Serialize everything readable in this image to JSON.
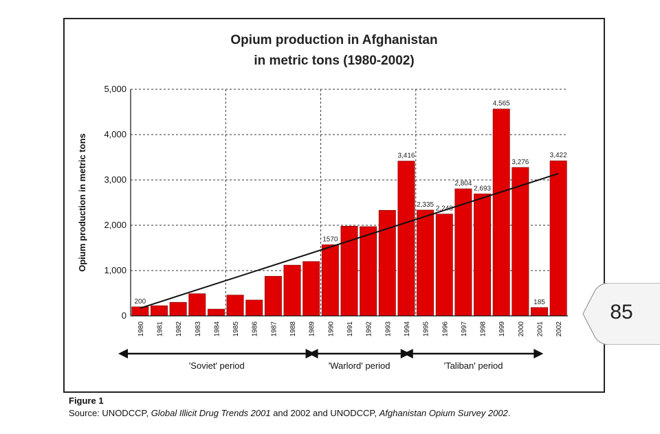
{
  "chart_data": {
    "type": "bar",
    "title": "Opium production in Afghanistan",
    "subtitle": "in metric tons (1980-2002)",
    "ylabel": "Opium production in metric tons",
    "xlabel": "",
    "ylim": [
      0,
      5000
    ],
    "yticks": [
      "0",
      "1,000",
      "2,000",
      "3,000",
      "4,000",
      "5,000"
    ],
    "ytick_values": [
      0,
      1000,
      2000,
      3000,
      4000,
      5000
    ],
    "grid": true,
    "bar_color": "#e00000",
    "categories": [
      "1980",
      "1981",
      "1982",
      "1983",
      "1984",
      "1985",
      "1986",
      "1987",
      "1988",
      "1989",
      "1990",
      "1991",
      "1992",
      "1993",
      "1994",
      "1995",
      "1996",
      "1997",
      "1998",
      "1999",
      "2000",
      "2001",
      "2002"
    ],
    "values": [
      200,
      225,
      300,
      490,
      150,
      460,
      350,
      875,
      1120,
      1200,
      1570,
      1980,
      1970,
      2330,
      3416,
      2335,
      2248,
      2804,
      2693,
      4565,
      3276,
      185,
      3422
    ],
    "data_labels": [
      {
        "index": 0,
        "text": "200"
      },
      {
        "index": 10,
        "text": "1570"
      },
      {
        "index": 14,
        "text": "3,416"
      },
      {
        "index": 15,
        "text": "2,335"
      },
      {
        "index": 16,
        "text": "2,248"
      },
      {
        "index": 17,
        "text": "2,804"
      },
      {
        "index": 18,
        "text": "2,693"
      },
      {
        "index": 19,
        "text": "4,565"
      },
      {
        "index": 20,
        "text": "3,276"
      },
      {
        "index": 21,
        "text": "185"
      },
      {
        "index": 22,
        "text": "3,422"
      }
    ],
    "trendline": {
      "from": {
        "x": "1980",
        "y": 170
      },
      "to": {
        "x": "2002",
        "y": 3140
      }
    },
    "period_dividers_after": [
      "1984",
      "1989",
      "1994"
    ],
    "periods": [
      {
        "label": "'Soviet' period",
        "start": "1980",
        "end": "1989"
      },
      {
        "label": "'Warlord' period",
        "start": "1990",
        "end": "1994"
      },
      {
        "label": "'Taliban' period",
        "start": "1995",
        "end": "2001"
      }
    ]
  },
  "figure_label": "Figure 1",
  "source": {
    "prefix": "Source: UNODCCP, ",
    "title1": "Global Illicit Drug Trends 2001",
    "middle": " and 2002 and UNODCCP, ",
    "title2": "Afghanistan Opium Survey 2002",
    "suffix": "."
  },
  "page_number": "85"
}
